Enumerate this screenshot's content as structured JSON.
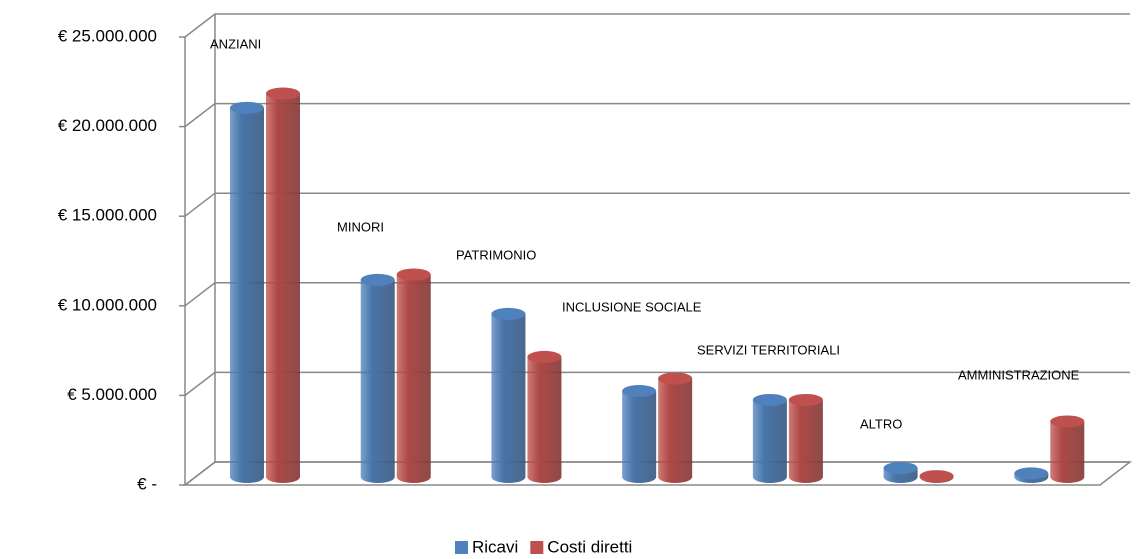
{
  "chart_data": {
    "type": "bar3d",
    "categories": [
      "ANZIANI",
      "MINORI",
      "PATRIMONIO",
      "INCLUSIONE SOCIALE",
      "SERVIZI TERRITORIALI",
      "ALTRO",
      "AMMINISTRAZIONE"
    ],
    "series": [
      {
        "name": "Ricavi",
        "color": "#4f81bd",
        "values": [
          20600000,
          11000000,
          9100000,
          4800000,
          4300000,
          500000,
          200000
        ]
      },
      {
        "name": "Costi diretti",
        "color": "#c0504d",
        "values": [
          21400000,
          11300000,
          6700000,
          5500000,
          4300000,
          50000,
          3100000
        ]
      }
    ],
    "ylim": [
      0,
      25000000
    ],
    "yticks": [
      {
        "value": 0,
        "label": "€ -"
      },
      {
        "value": 5000000,
        "label": "€ 5.000.000"
      },
      {
        "value": 10000000,
        "label": "€ 10.000.000"
      },
      {
        "value": 15000000,
        "label": "€ 15.000.000"
      },
      {
        "value": 20000000,
        "label": "€ 20.000.000"
      },
      {
        "value": 25000000,
        "label": "€ 25.000.000"
      }
    ],
    "grid": true,
    "legend": "bottom"
  }
}
